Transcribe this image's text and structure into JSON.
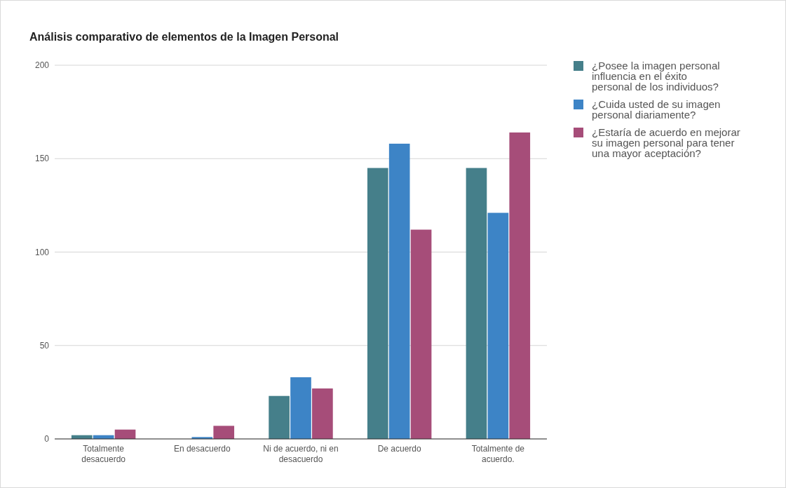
{
  "chart_data": {
    "type": "bar",
    "title": "Análisis comparativo de elementos de la Imagen Personal",
    "categories": [
      "Totalmente desacuerdo",
      "En desacuerdo",
      "Ni de acuerdo, ni en desacuerdo",
      "De acuerdo",
      "Totalmente de acuerdo."
    ],
    "series": [
      {
        "name": "¿Posee la imagen personal influencia en el éxito personal de los individuos?",
        "color": "#457f8a",
        "values": [
          2,
          0,
          23,
          145,
          145
        ]
      },
      {
        "name": "¿Cuida usted de su imagen personal diariamente?",
        "color": "#3d84c6",
        "values": [
          2,
          1,
          33,
          158,
          121
        ]
      },
      {
        "name": "¿Estaría de acuerdo en mejorar su imagen personal para tener una mayor aceptación?",
        "color": "#a64d79",
        "values": [
          5,
          7,
          27,
          112,
          164
        ]
      }
    ],
    "ylim": [
      0,
      200
    ],
    "yticks": [
      0,
      50,
      100,
      150,
      200
    ],
    "grid": "y",
    "legend": "right"
  }
}
